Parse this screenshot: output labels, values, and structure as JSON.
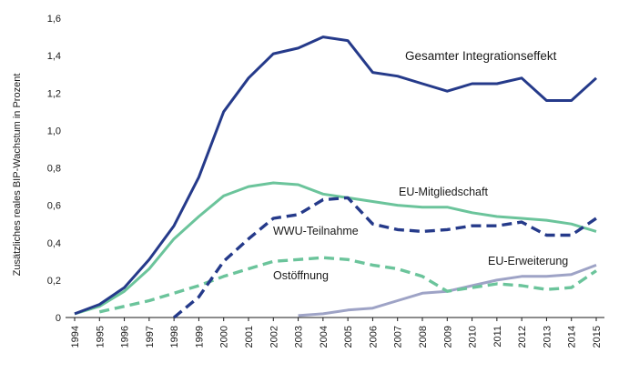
{
  "chart_data": {
    "type": "line",
    "ylabel": "Zusätzliches reales BIP-Wachstum in Prozent",
    "xlabel": "",
    "ylim": [
      0,
      1.6
    ],
    "y_ticks": [
      "0",
      "0,2",
      "0,4",
      "0,6",
      "0,8",
      "1,0",
      "1,2",
      "1,4",
      "1,6"
    ],
    "y_tick_values": [
      0,
      0.2,
      0.4,
      0.6,
      0.8,
      1.0,
      1.2,
      1.4,
      1.6
    ],
    "x": [
      "1994",
      "1995",
      "1996",
      "1997",
      "1998",
      "1999",
      "2000",
      "2001",
      "2002",
      "2003",
      "2004",
      "2005",
      "2006",
      "2007",
      "2008",
      "2009",
      "2010",
      "2011",
      "2012",
      "2013",
      "2014",
      "2015"
    ],
    "grid": false,
    "legend": "inline labels",
    "series": [
      {
        "name": "Gesamter Integrationseffekt",
        "color": "#253a8a",
        "dash": "solid",
        "values": [
          0.02,
          0.07,
          0.16,
          0.31,
          0.49,
          0.75,
          1.1,
          1.28,
          1.41,
          1.44,
          1.5,
          1.48,
          1.31,
          1.29,
          1.25,
          1.21,
          1.25,
          1.25,
          1.28,
          1.16,
          1.16,
          1.28
        ]
      },
      {
        "name": "EU-Mitgliedschaft",
        "color": "#6bc49b",
        "dash": "solid",
        "values": [
          0.02,
          0.06,
          0.14,
          0.26,
          0.42,
          0.54,
          0.65,
          0.7,
          0.72,
          0.71,
          0.66,
          0.64,
          0.62,
          0.6,
          0.59,
          0.59,
          0.56,
          0.54,
          0.53,
          0.52,
          0.5,
          0.46
        ]
      },
      {
        "name": "WWU-Teilnahme",
        "color": "#253a8a",
        "dash": "dashed",
        "values": [
          null,
          null,
          null,
          null,
          0.0,
          0.11,
          0.3,
          0.42,
          0.53,
          0.55,
          0.63,
          0.64,
          0.5,
          0.47,
          0.46,
          0.47,
          0.49,
          0.49,
          0.51,
          0.44,
          0.44,
          0.53
        ]
      },
      {
        "name": "Ostöffnung",
        "color": "#6bc49b",
        "dash": "dashed",
        "values": [
          null,
          0.03,
          0.06,
          0.09,
          0.13,
          0.17,
          0.22,
          0.26,
          0.3,
          0.31,
          0.32,
          0.31,
          0.28,
          0.26,
          0.22,
          0.14,
          0.16,
          0.18,
          0.17,
          0.15,
          0.16,
          0.25
        ]
      },
      {
        "name": "EU-Erweiterung",
        "color": "#9ea3c6",
        "dash": "solid",
        "values": [
          null,
          null,
          null,
          null,
          null,
          null,
          null,
          null,
          null,
          0.01,
          0.02,
          0.04,
          0.05,
          0.09,
          0.13,
          0.14,
          0.17,
          0.2,
          0.22,
          0.22,
          0.23,
          0.28
        ]
      }
    ]
  }
}
